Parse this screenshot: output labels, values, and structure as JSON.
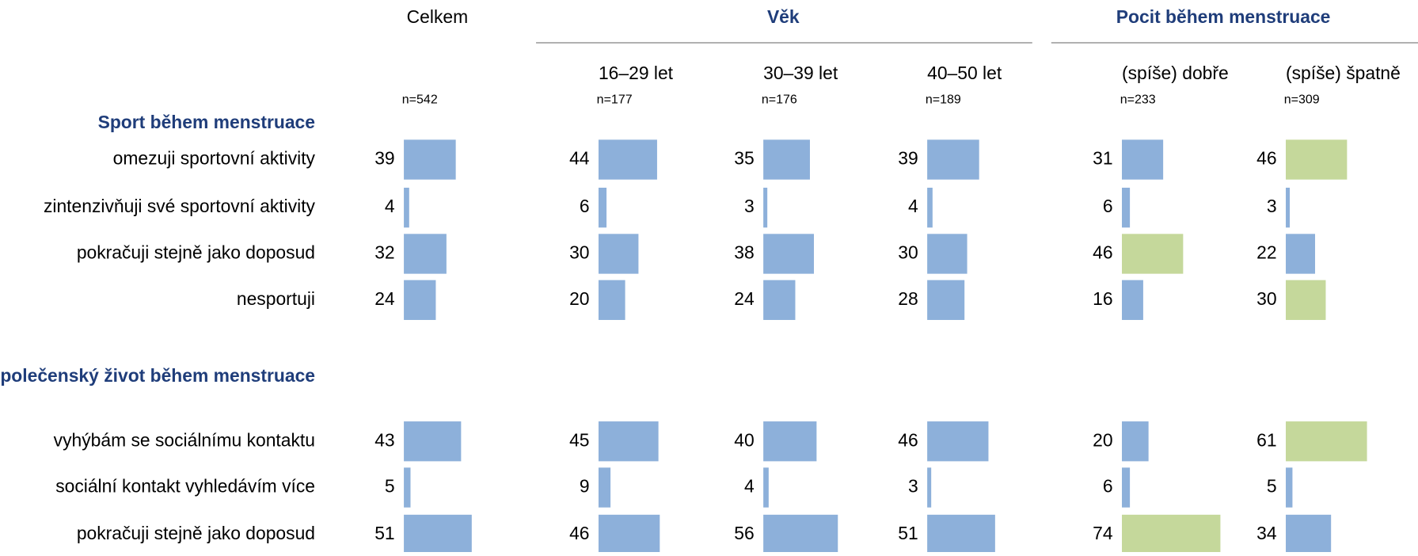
{
  "header": {
    "total": "Celkem",
    "groups": [
      {
        "title": "Věk"
      },
      {
        "title": "Pocit během menstruace"
      }
    ]
  },
  "columns": [
    {
      "n": "n=542"
    },
    {
      "label": "16–29 let",
      "n": "n=177"
    },
    {
      "label": "30–39 let",
      "n": "n=176"
    },
    {
      "label": "40–50 let",
      "n": "n=189"
    },
    {
      "label": "(spíše) dobře",
      "n": "n=233"
    },
    {
      "label": "(spíše) špatně",
      "n": "n=309"
    }
  ],
  "sections": [
    {
      "title": "Sport během menstruace",
      "rows": [
        {
          "label": "omezuji sportovní aktivity",
          "values": [
            39,
            44,
            35,
            39,
            31,
            46
          ],
          "colors": [
            "#8db0da",
            "#8db0da",
            "#8db0da",
            "#8db0da",
            "#8db0da",
            "#c5d89b"
          ]
        },
        {
          "label": "zintenzivňuji své sportovní aktivity",
          "values": [
            4,
            6,
            3,
            4,
            6,
            3
          ],
          "colors": [
            "#8db0da",
            "#8db0da",
            "#8db0da",
            "#8db0da",
            "#8db0da",
            "#8db0da"
          ]
        },
        {
          "label": "pokračuji stejně jako doposud",
          "values": [
            32,
            30,
            38,
            30,
            46,
            22
          ],
          "colors": [
            "#8db0da",
            "#8db0da",
            "#8db0da",
            "#8db0da",
            "#c5d89b",
            "#8db0da"
          ]
        },
        {
          "label": "nesportuji",
          "values": [
            24,
            20,
            24,
            28,
            16,
            30
          ],
          "colors": [
            "#8db0da",
            "#8db0da",
            "#8db0da",
            "#8db0da",
            "#8db0da",
            "#c5d89b"
          ]
        }
      ]
    },
    {
      "title": "Společenský život během menstruace",
      "rows": [
        {
          "label": "vyhýbám se sociálnímu kontaktu",
          "values": [
            43,
            45,
            40,
            46,
            20,
            61
          ],
          "colors": [
            "#8db0da",
            "#8db0da",
            "#8db0da",
            "#8db0da",
            "#8db0da",
            "#c5d89b"
          ]
        },
        {
          "label": "sociální kontakt vyhledávím více",
          "values": [
            5,
            9,
            4,
            3,
            6,
            5
          ],
          "colors": [
            "#8db0da",
            "#8db0da",
            "#8db0da",
            "#8db0da",
            "#8db0da",
            "#8db0da"
          ]
        },
        {
          "label": "pokračuji stejně jako doposud",
          "values": [
            51,
            46,
            56,
            51,
            74,
            34
          ],
          "colors": [
            "#8db0da",
            "#8db0da",
            "#8db0da",
            "#8db0da",
            "#c5d89b",
            "#8db0da"
          ]
        }
      ]
    }
  ]
}
